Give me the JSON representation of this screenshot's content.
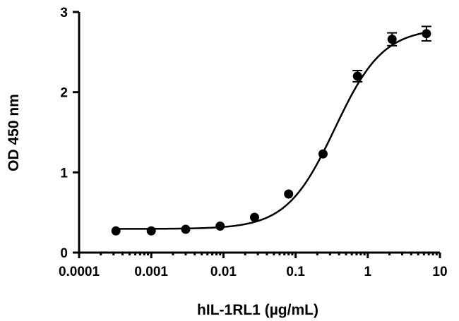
{
  "chart_data": {
    "type": "scatter",
    "title": "",
    "xlabel": "hIL-1RL1 (µg/mL)",
    "ylabel": "OD 450 nm",
    "xscale": "log",
    "xlim": [
      0.0001,
      10
    ],
    "ylim": [
      0,
      3
    ],
    "grid": false,
    "x_ticks": [
      {
        "value": 0.0001,
        "label": "0.0001"
      },
      {
        "value": 0.001,
        "label": "0.001"
      },
      {
        "value": 0.01,
        "label": "0.01"
      },
      {
        "value": 0.1,
        "label": "0.1"
      },
      {
        "value": 1,
        "label": "1"
      },
      {
        "value": 10,
        "label": "10"
      }
    ],
    "y_ticks": [
      {
        "value": 0,
        "label": "0"
      },
      {
        "value": 1,
        "label": "1"
      },
      {
        "value": 2,
        "label": "2"
      },
      {
        "value": 3,
        "label": "3"
      }
    ],
    "series": [
      {
        "x": [
          0.000324,
          0.001,
          0.003,
          0.009,
          0.027,
          0.08,
          0.24,
          0.72,
          2.17,
          6.5
        ],
        "y": [
          0.27,
          0.27,
          0.29,
          0.33,
          0.44,
          0.73,
          1.23,
          2.2,
          2.66,
          2.73
        ],
        "error": [
          0,
          0,
          0,
          0,
          0,
          0,
          0,
          0.07,
          0.08,
          0.09
        ]
      }
    ],
    "fit": {
      "type": "4PL",
      "bottom": 0.295,
      "top": 2.8,
      "ec50": 0.35,
      "hill": 1.3
    }
  }
}
